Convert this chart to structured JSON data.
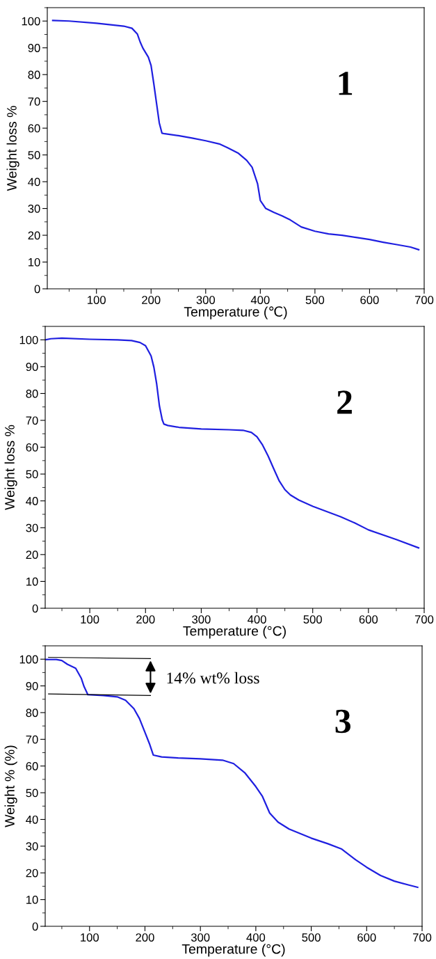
{
  "chart_data": [
    {
      "type": "line",
      "xlabel": "Temperature (℃)",
      "ylabel": "Weight loss %",
      "annotations": [
        "1"
      ],
      "xlim": [
        10,
        700
      ],
      "ylim": [
        0,
        105
      ],
      "xticks": [
        100,
        200,
        300,
        400,
        500,
        600,
        700
      ],
      "yticks": [
        0,
        10,
        20,
        30,
        40,
        50,
        60,
        70,
        80,
        90,
        100
      ],
      "grid": false,
      "legend": false,
      "series": [
        {
          "color": "#1f1fe0",
          "x": [
            20,
            50,
            100,
            150,
            165,
            175,
            180,
            185,
            195,
            200,
            205,
            210,
            215,
            220,
            225,
            250,
            275,
            300,
            325,
            340,
            360,
            375,
            385,
            395,
            400,
            410,
            425,
            440,
            455,
            475,
            500,
            525,
            550,
            575,
            600,
            625,
            650,
            675,
            690
          ],
          "values": [
            100.2,
            100,
            99.2,
            98.1,
            97.3,
            95.1,
            92.2,
            89.9,
            86.5,
            83.4,
            76.6,
            69.3,
            62,
            58.1,
            57.9,
            57.2,
            56.3,
            55.3,
            54.1,
            52.7,
            50.6,
            48,
            45.4,
            39.2,
            33,
            30,
            28.5,
            27.2,
            25.7,
            23.1,
            21.5,
            20.5,
            20,
            19.2,
            18.4,
            17.4,
            16.5,
            15.6,
            14.6
          ]
        }
      ]
    },
    {
      "type": "line",
      "xlabel": "Temperature (°C)",
      "ylabel": "Weight loss %",
      "annotations": [
        "2"
      ],
      "xlim": [
        20,
        700
      ],
      "ylim": [
        0,
        105
      ],
      "xticks": [
        100,
        200,
        300,
        400,
        500,
        600,
        700
      ],
      "yticks": [
        0,
        10,
        20,
        30,
        40,
        50,
        60,
        70,
        80,
        90,
        100
      ],
      "grid": false,
      "legend": false,
      "series": [
        {
          "color": "#1f1fe0",
          "x": [
            20,
            30,
            50,
            100,
            150,
            175,
            190,
            200,
            210,
            215,
            220,
            225,
            230,
            233,
            240,
            260,
            300,
            350,
            375,
            390,
            400,
            410,
            420,
            430,
            440,
            450,
            460,
            475,
            500,
            550,
            575,
            600,
            650,
            690
          ],
          "values": [
            100,
            100.4,
            100.6,
            100.2,
            100,
            99.7,
            99,
            97.8,
            94,
            89.8,
            83.6,
            75.3,
            70.2,
            68.6,
            68.1,
            67.4,
            66.8,
            66.5,
            66.3,
            65.5,
            63.9,
            60.8,
            56.7,
            52,
            47.4,
            44.2,
            42.2,
            40.3,
            38,
            34.1,
            31.8,
            29.2,
            25.6,
            22.5
          ]
        }
      ]
    },
    {
      "type": "line",
      "xlabel": "Temperature (°C)",
      "ylabel": "Weight % (%)",
      "annotations": [
        "3",
        "14% wt% loss"
      ],
      "xlim": [
        20,
        700
      ],
      "ylim": [
        0,
        105
      ],
      "xticks": [
        100,
        200,
        300,
        400,
        500,
        600,
        700
      ],
      "yticks": [
        0,
        10,
        20,
        30,
        40,
        50,
        60,
        70,
        80,
        90,
        100
      ],
      "grid": false,
      "legend": false,
      "series": [
        {
          "color": "#1f1fe0",
          "x": [
            20,
            40,
            50,
            60,
            75,
            85,
            90,
            97,
            125,
            150,
            165,
            180,
            190,
            200,
            208,
            215,
            230,
            260,
            300,
            340,
            360,
            380,
            400,
            412,
            425,
            440,
            460,
            500,
            530,
            555,
            580,
            600,
            625,
            650,
            675,
            692
          ],
          "values": [
            99.9,
            99.9,
            99.5,
            98.1,
            96.6,
            92.9,
            89.8,
            86.7,
            86.4,
            85.9,
            84.6,
            81.5,
            77.8,
            72.6,
            68.4,
            64.1,
            63.4,
            63,
            62.7,
            62.2,
            60.9,
            57.5,
            52.3,
            48.6,
            42.4,
            39,
            36.4,
            33,
            30.9,
            28.9,
            24.9,
            22.1,
            19,
            16.9,
            15.5,
            14.6
          ]
        },
        {
          "color": "#000000",
          "x": [
            26,
            210
          ],
          "values": [
            100.7,
            100.2
          ]
        },
        {
          "color": "#000000",
          "x": [
            26,
            210
          ],
          "values": [
            87,
            86.4
          ]
        }
      ]
    }
  ]
}
